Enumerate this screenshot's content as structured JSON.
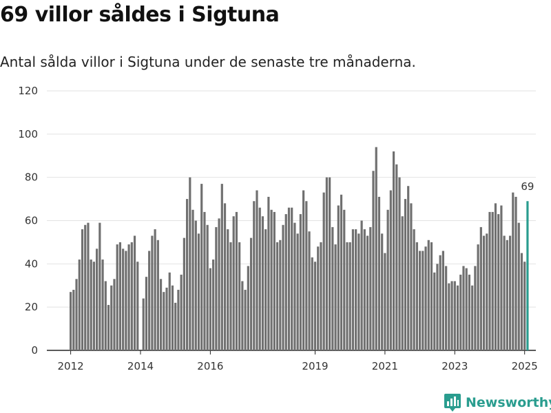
{
  "header": {
    "title": "69 villor såldes i Sigtuna",
    "subtitle": "Antal sålda villor i Sigtuna under de senaste tre månaderna."
  },
  "brand": {
    "name": "Newsworthy",
    "color": "#2a9d8f"
  },
  "chart_data": {
    "type": "bar",
    "title": "",
    "xlabel": "",
    "ylabel": "",
    "ylim": [
      0,
      120
    ],
    "yticks": [
      "0",
      "20",
      "40",
      "60",
      "80",
      "100",
      "120"
    ],
    "xticks": [
      "2012",
      "2014",
      "2016",
      "2019",
      "2021",
      "2023",
      "2025"
    ],
    "grid": true,
    "bar_color": "#707070",
    "highlight_color": "#2a9d8f",
    "start": "2012-01",
    "values": [
      27,
      28,
      33,
      42,
      56,
      58,
      59,
      42,
      41,
      47,
      59,
      42,
      32,
      21,
      30,
      33,
      49,
      50,
      47,
      46,
      49,
      50,
      53,
      41,
      0,
      24,
      34,
      46,
      53,
      56,
      51,
      33,
      27,
      29,
      36,
      30,
      22,
      28,
      35,
      52,
      70,
      80,
      65,
      60,
      54,
      77,
      64,
      58,
      38,
      42,
      57,
      61,
      77,
      68,
      56,
      50,
      62,
      64,
      50,
      32,
      28,
      39,
      52,
      69,
      74,
      66,
      62,
      56,
      71,
      65,
      64,
      50,
      51,
      58,
      63,
      66,
      66,
      59,
      54,
      63,
      74,
      69,
      55,
      43,
      41,
      48,
      50,
      73,
      80,
      80,
      57,
      49,
      67,
      72,
      65,
      50,
      50,
      56,
      56,
      54,
      60,
      56,
      53,
      57,
      83,
      94,
      71,
      54,
      45,
      65,
      74,
      92,
      86,
      80,
      62,
      70,
      76,
      68,
      56,
      50,
      46,
      46,
      48,
      51,
      50,
      36,
      40,
      44,
      46,
      39,
      31,
      32,
      32,
      30,
      35,
      39,
      38,
      35,
      30,
      39,
      49,
      57,
      53,
      54,
      64,
      64,
      68,
      63,
      67,
      53,
      51,
      53,
      73,
      71,
      59,
      45,
      41,
      69
    ],
    "annotation": {
      "label": "69",
      "value": 69,
      "index": 157
    }
  }
}
